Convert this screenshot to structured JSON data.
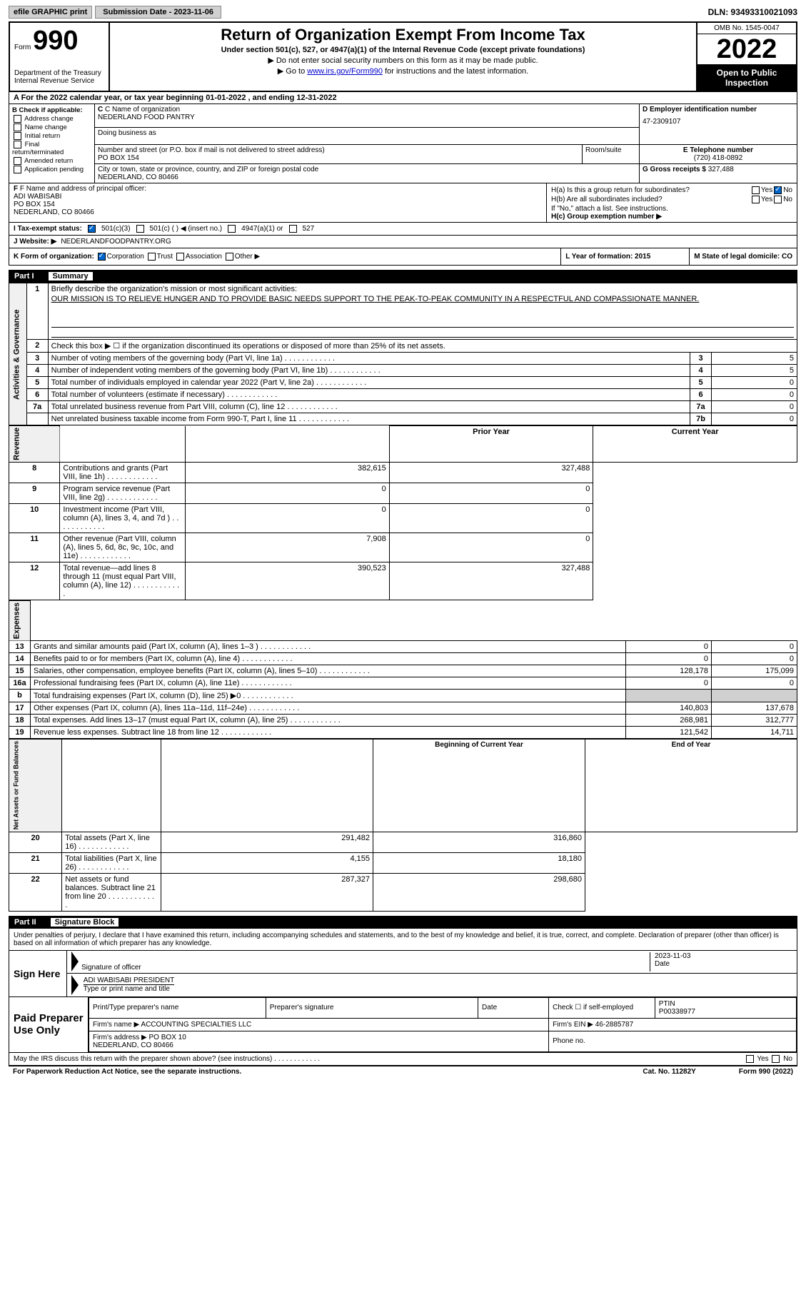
{
  "top": {
    "efile_btn": "efile GRAPHIC print",
    "sub_date_label": "Submission Date - 2023-11-06",
    "dln": "DLN: 93493310021093"
  },
  "header": {
    "form_label": "Form",
    "form_num": "990",
    "dept": "Department of the Treasury\nInternal Revenue Service",
    "title": "Return of Organization Exempt From Income Tax",
    "sub": "Under section 501(c), 527, or 4947(a)(1) of the Internal Revenue Code (except private foundations)",
    "note1": "▶ Do not enter social security numbers on this form as it may be made public.",
    "note2_pre": "▶ Go to ",
    "note2_link": "www.irs.gov/Form990",
    "note2_post": " for instructions and the latest information.",
    "omb": "OMB No. 1545-0047",
    "year": "2022",
    "open_pub": "Open to Public Inspection"
  },
  "row_a": "A For the 2022 calendar year, or tax year beginning 01-01-2022   , and ending 12-31-2022",
  "section_b": {
    "label": "B Check if applicable:",
    "items": [
      "Address change",
      "Name change",
      "Initial return",
      "Final return/terminated",
      "Amended return",
      "Application pending"
    ]
  },
  "section_c": {
    "name_label": "C Name of organization",
    "name": "NEDERLAND FOOD PANTRY",
    "dba_label": "Doing business as",
    "street_label": "Number and street (or P.O. box if mail is not delivered to street address)",
    "street": "PO BOX 154",
    "room_label": "Room/suite",
    "city_label": "City or town, state or province, country, and ZIP or foreign postal code",
    "city": "NEDERLAND, CO  80466"
  },
  "section_d": {
    "label": "D Employer identification number",
    "value": "47-2309107"
  },
  "section_e": {
    "label": "E Telephone number",
    "value": "(720) 418-0892"
  },
  "section_g": {
    "label": "G Gross receipts $",
    "value": "327,488"
  },
  "section_f": {
    "label": "F Name and address of principal officer:",
    "name": "ADI WABISABI",
    "addr1": "PO BOX 154",
    "addr2": "NEDERLAND, CO  80466"
  },
  "section_h": {
    "ha_label": "H(a)  Is this a group return for subordinates?",
    "hb_label": "H(b)  Are all subordinates included?",
    "hb_note": "If \"No,\" attach a list. See instructions.",
    "hc_label": "H(c)  Group exemption number ▶",
    "yes": "Yes",
    "no": "No"
  },
  "row_i": {
    "label": "I  Tax-exempt status:",
    "opt1": "501(c)(3)",
    "opt2": "501(c) (  ) ◀ (insert no.)",
    "opt3": "4947(a)(1) or",
    "opt4": "527"
  },
  "row_j": {
    "label": "J  Website: ▶",
    "value": "NEDERLANDFOODPANTRY.ORG"
  },
  "row_k": {
    "label": "K Form of organization:",
    "corp": "Corporation",
    "trust": "Trust",
    "assoc": "Association",
    "other": "Other ▶",
    "l_label": "L Year of formation: 2015",
    "m_label": "M State of legal domicile: CO"
  },
  "part1": {
    "num": "Part I",
    "title": "Summary",
    "vert_labels": [
      "Activities & Governance",
      "Revenue",
      "Expenses",
      "Net Assets or Fund Balances"
    ],
    "line1_label": "Briefly describe the organization's mission or most significant activities:",
    "mission": "OUR MISSION IS TO RELIEVE HUNGER AND TO PROVIDE BASIC NEEDS SUPPORT TO THE PEAK-TO-PEAK COMMUNITY IN A RESPECTFUL AND COMPASSIONATE MANNER.",
    "line2": "Check this box ▶ ☐  if the organization discontinued its operations or disposed of more than 25% of its net assets.",
    "rows_ag": [
      {
        "n": "3",
        "d": "Number of voting members of the governing body (Part VI, line 1a)",
        "b": "3",
        "v": "5"
      },
      {
        "n": "4",
        "d": "Number of independent voting members of the governing body (Part VI, line 1b)",
        "b": "4",
        "v": "5"
      },
      {
        "n": "5",
        "d": "Total number of individuals employed in calendar year 2022 (Part V, line 2a)",
        "b": "5",
        "v": "0"
      },
      {
        "n": "6",
        "d": "Total number of volunteers (estimate if necessary)",
        "b": "6",
        "v": "0"
      },
      {
        "n": "7a",
        "d": "Total unrelated business revenue from Part VIII, column (C), line 12",
        "b": "7a",
        "v": "0"
      },
      {
        "n": "",
        "d": "Net unrelated business taxable income from Form 990-T, Part I, line 11",
        "b": "7b",
        "v": "0"
      }
    ],
    "hdr_prior": "Prior Year",
    "hdr_current": "Current Year",
    "rows_rev": [
      {
        "n": "8",
        "d": "Contributions and grants (Part VIII, line 1h)",
        "p": "382,615",
        "c": "327,488"
      },
      {
        "n": "9",
        "d": "Program service revenue (Part VIII, line 2g)",
        "p": "0",
        "c": "0"
      },
      {
        "n": "10",
        "d": "Investment income (Part VIII, column (A), lines 3, 4, and 7d )",
        "p": "0",
        "c": "0"
      },
      {
        "n": "11",
        "d": "Other revenue (Part VIII, column (A), lines 5, 6d, 8c, 9c, 10c, and 11e)",
        "p": "7,908",
        "c": "0"
      },
      {
        "n": "12",
        "d": "Total revenue—add lines 8 through 11 (must equal Part VIII, column (A), line 12)",
        "p": "390,523",
        "c": "327,488"
      }
    ],
    "rows_exp": [
      {
        "n": "13",
        "d": "Grants and similar amounts paid (Part IX, column (A), lines 1–3 )",
        "p": "0",
        "c": "0"
      },
      {
        "n": "14",
        "d": "Benefits paid to or for members (Part IX, column (A), line 4)",
        "p": "0",
        "c": "0"
      },
      {
        "n": "15",
        "d": "Salaries, other compensation, employee benefits (Part IX, column (A), lines 5–10)",
        "p": "128,178",
        "c": "175,099"
      },
      {
        "n": "16a",
        "d": "Professional fundraising fees (Part IX, column (A), line 11e)",
        "p": "0",
        "c": "0"
      },
      {
        "n": "b",
        "d": "Total fundraising expenses (Part IX, column (D), line 25) ▶0",
        "p": "",
        "c": "",
        "shade": true
      },
      {
        "n": "17",
        "d": "Other expenses (Part IX, column (A), lines 11a–11d, 11f–24e)",
        "p": "140,803",
        "c": "137,678"
      },
      {
        "n": "18",
        "d": "Total expenses. Add lines 13–17 (must equal Part IX, column (A), line 25)",
        "p": "268,981",
        "c": "312,777"
      },
      {
        "n": "19",
        "d": "Revenue less expenses. Subtract line 18 from line 12",
        "p": "121,542",
        "c": "14,711"
      }
    ],
    "hdr_beg": "Beginning of Current Year",
    "hdr_end": "End of Year",
    "rows_net": [
      {
        "n": "20",
        "d": "Total assets (Part X, line 16)",
        "p": "291,482",
        "c": "316,860"
      },
      {
        "n": "21",
        "d": "Total liabilities (Part X, line 26)",
        "p": "4,155",
        "c": "18,180"
      },
      {
        "n": "22",
        "d": "Net assets or fund balances. Subtract line 21 from line 20",
        "p": "287,327",
        "c": "298,680"
      }
    ]
  },
  "part2": {
    "num": "Part II",
    "title": "Signature Block",
    "declare": "Under penalties of perjury, I declare that I have examined this return, including accompanying schedules and statements, and to the best of my knowledge and belief, it is true, correct, and complete. Declaration of preparer (other than officer) is based on all information of which preparer has any knowledge.",
    "sign_here": "Sign Here",
    "sig_of_officer": "Signature of officer",
    "sig_date": "2023-11-03",
    "date_label": "Date",
    "officer_name": "ADI WABISABI  PRESIDENT",
    "type_name_label": "Type or print name and title",
    "paid_prep": "Paid Preparer Use Only",
    "prep_name_label": "Print/Type preparer's name",
    "prep_sig_label": "Preparer's signature",
    "check_if": "Check ☐ if self-employed",
    "ptin_label": "PTIN",
    "ptin": "P00338977",
    "firm_name_label": "Firm's name    ▶",
    "firm_name": "ACCOUNTING SPECIALTIES LLC",
    "firm_ein_label": "Firm's EIN ▶",
    "firm_ein": "46-2885787",
    "firm_addr_label": "Firm's address ▶",
    "firm_addr": "PO BOX 10\nNEDERLAND, CO  80466",
    "phone_label": "Phone no.",
    "may_irs": "May the IRS discuss this return with the preparer shown above? (see instructions)",
    "yes": "Yes",
    "no": "No"
  },
  "footer": {
    "left": "For Paperwork Reduction Act Notice, see the separate instructions.",
    "mid": "Cat. No. 11282Y",
    "right": "Form 990 (2022)"
  }
}
